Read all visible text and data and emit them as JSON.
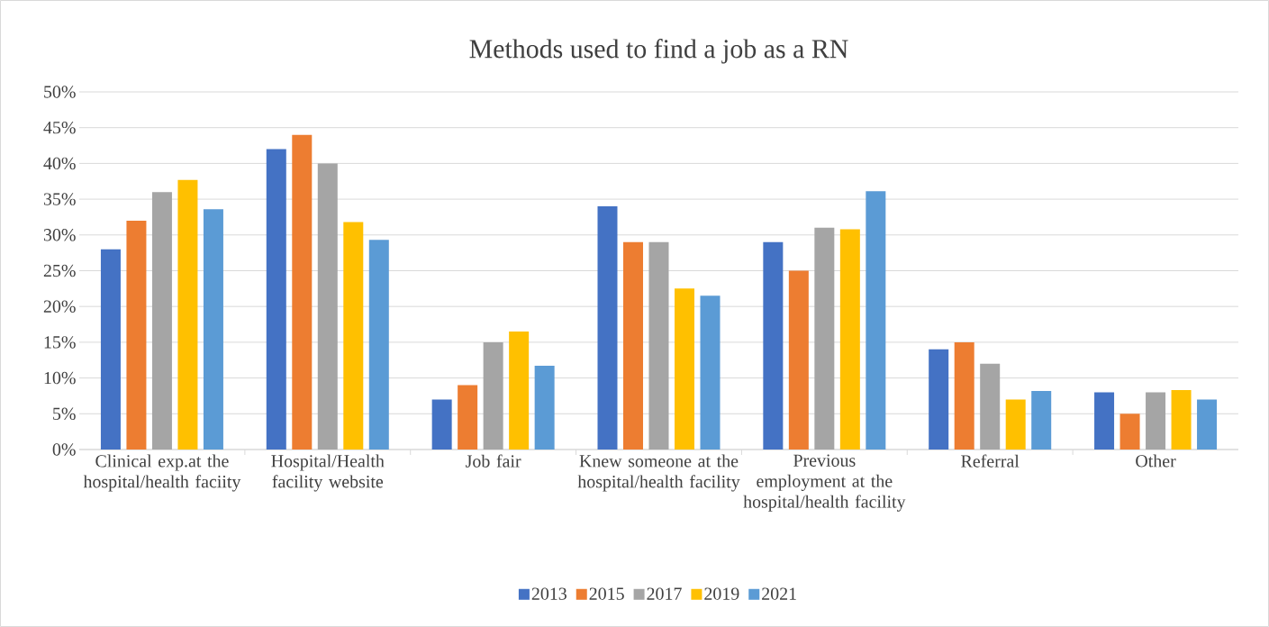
{
  "chart_data": {
    "type": "bar",
    "title": "Methods used to find a job as a RN",
    "categories": [
      "Clinical exp.at the hospital/health faciity",
      "Hospital/Health facility website",
      "Job fair",
      "Knew someone at the hospital/health facility",
      "Previous employment at the hospital/health facility",
      "Referral",
      "Other"
    ],
    "series": [
      {
        "name": "2013",
        "color": "#4472c4",
        "values": [
          28,
          42,
          7,
          34,
          29,
          14,
          8
        ]
      },
      {
        "name": "2015",
        "color": "#ed7d31",
        "values": [
          32,
          44,
          9,
          29,
          25,
          15,
          5
        ]
      },
      {
        "name": "2017",
        "color": "#a5a5a5",
        "values": [
          36,
          40,
          15,
          29,
          31,
          12,
          8
        ]
      },
      {
        "name": "2019",
        "color": "#ffc000",
        "values": [
          37.7,
          31.8,
          16.5,
          22.5,
          30.8,
          7,
          8.3
        ]
      },
      {
        "name": "2021",
        "color": "#5b9bd5",
        "values": [
          33.6,
          29.3,
          11.7,
          21.5,
          36.1,
          8.2,
          7
        ]
      }
    ],
    "ylim": [
      0,
      50
    ],
    "yticks": [
      {
        "value": 0,
        "label": "0%"
      },
      {
        "value": 5,
        "label": "5%"
      },
      {
        "value": 10,
        "label": "10%"
      },
      {
        "value": 15,
        "label": "15%"
      },
      {
        "value": 20,
        "label": "20%"
      },
      {
        "value": 25,
        "label": "25%"
      },
      {
        "value": 30,
        "label": "30%"
      },
      {
        "value": 35,
        "label": "35%"
      },
      {
        "value": 40,
        "label": "40%"
      },
      {
        "value": 45,
        "label": "45%"
      },
      {
        "value": 50,
        "label": "50%"
      }
    ],
    "grid": "y",
    "legend": "bottom"
  }
}
